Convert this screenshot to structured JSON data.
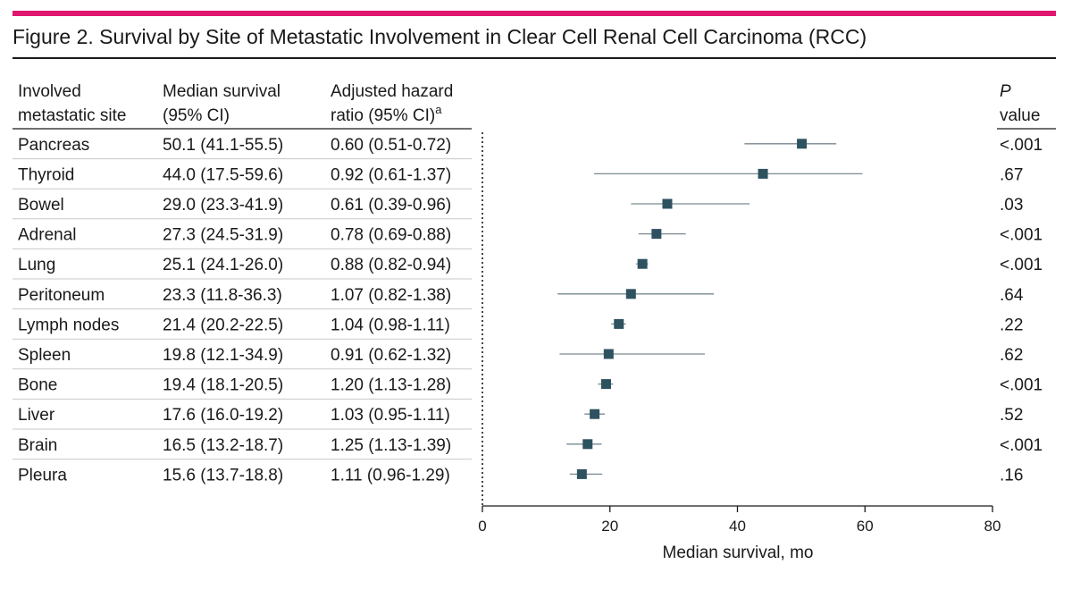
{
  "figure": {
    "title": "Figure 2. Survival by Site of Metastatic Involvement in Clear Cell Renal Cell Carcinoma (RCC)",
    "accent_color": "#e0176e",
    "marker_color": "#2f5260",
    "ci_color": "#7a8a90"
  },
  "table": {
    "headers": {
      "site": [
        "Involved",
        "metastatic site"
      ],
      "median": [
        "Median survival",
        "(95% CI)"
      ],
      "hr": [
        "Adjusted hazard",
        "ratio (95% CI)"
      ],
      "hr_footnote": "a",
      "p": [
        "P",
        "value"
      ]
    }
  },
  "chart_data": {
    "type": "forest",
    "title": "Figure 2. Survival by Site of Metastatic Involvement in Clear Cell Renal Cell Carcinoma (RCC)",
    "xlabel": "Median survival, mo",
    "ylabel": "",
    "xlim": [
      0,
      80
    ],
    "xticks": [
      0,
      20,
      40,
      60,
      80
    ],
    "rows": [
      {
        "site": "Pancreas",
        "median": 50.1,
        "lo": 41.1,
        "hi": 55.5,
        "median_text": "50.1 (41.1-55.5)",
        "hr_text": "0.60 (0.51-0.72)",
        "p_text": "<.001"
      },
      {
        "site": "Thyroid",
        "median": 44.0,
        "lo": 17.5,
        "hi": 59.6,
        "median_text": "44.0 (17.5-59.6)",
        "hr_text": "0.92 (0.61-1.37)",
        "p_text": ".67"
      },
      {
        "site": "Bowel",
        "median": 29.0,
        "lo": 23.3,
        "hi": 41.9,
        "median_text": "29.0 (23.3-41.9)",
        "hr_text": "0.61 (0.39-0.96)",
        "p_text": ".03"
      },
      {
        "site": "Adrenal",
        "median": 27.3,
        "lo": 24.5,
        "hi": 31.9,
        "median_text": "27.3 (24.5-31.9)",
        "hr_text": "0.78 (0.69-0.88)",
        "p_text": "<.001"
      },
      {
        "site": "Lung",
        "median": 25.1,
        "lo": 24.1,
        "hi": 26.0,
        "median_text": "25.1 (24.1-26.0)",
        "hr_text": "0.88 (0.82-0.94)",
        "p_text": "<.001"
      },
      {
        "site": "Peritoneum",
        "median": 23.3,
        "lo": 11.8,
        "hi": 36.3,
        "median_text": "23.3 (11.8-36.3)",
        "hr_text": "1.07 (0.82-1.38)",
        "p_text": ".64"
      },
      {
        "site": "Lymph nodes",
        "median": 21.4,
        "lo": 20.2,
        "hi": 22.5,
        "median_text": "21.4 (20.2-22.5)",
        "hr_text": "1.04 (0.98-1.11)",
        "p_text": ".22"
      },
      {
        "site": "Spleen",
        "median": 19.8,
        "lo": 12.1,
        "hi": 34.9,
        "median_text": "19.8 (12.1-34.9)",
        "hr_text": "0.91 (0.62-1.32)",
        "p_text": ".62"
      },
      {
        "site": "Bone",
        "median": 19.4,
        "lo": 18.1,
        "hi": 20.5,
        "median_text": "19.4 (18.1-20.5)",
        "hr_text": "1.20 (1.13-1.28)",
        "p_text": "<.001"
      },
      {
        "site": "Liver",
        "median": 17.6,
        "lo": 16.0,
        "hi": 19.2,
        "median_text": "17.6 (16.0-19.2)",
        "hr_text": "1.03 (0.95-1.11)",
        "p_text": ".52"
      },
      {
        "site": "Brain",
        "median": 16.5,
        "lo": 13.2,
        "hi": 18.7,
        "median_text": "16.5 (13.2-18.7)",
        "hr_text": "1.25 (1.13-1.39)",
        "p_text": "<.001"
      },
      {
        "site": "Pleura",
        "median": 15.6,
        "lo": 13.7,
        "hi": 18.8,
        "median_text": "15.6 (13.7-18.8)",
        "hr_text": "1.11 (0.96-1.29)",
        "p_text": ".16"
      }
    ]
  }
}
